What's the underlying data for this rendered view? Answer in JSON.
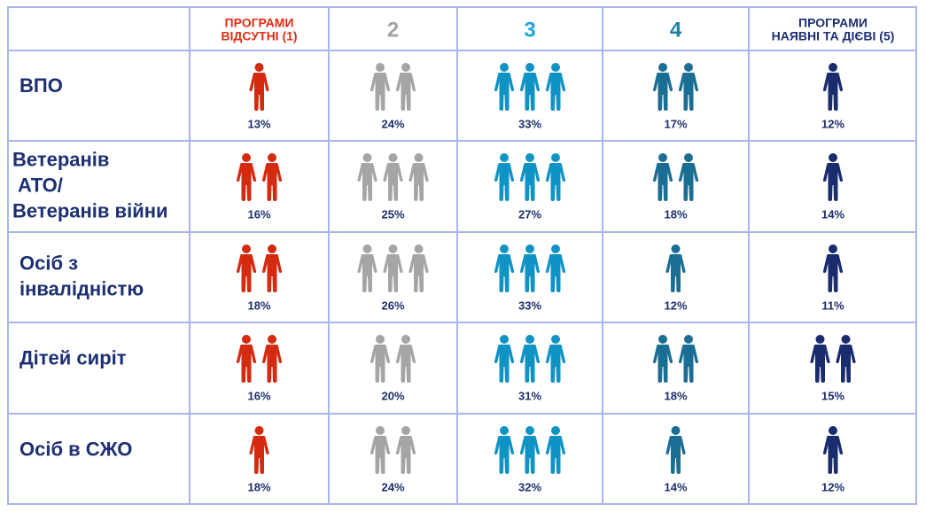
{
  "chart_data": {
    "type": "table",
    "columns": [
      {
        "label_lines": [
          "ПРОГРАМИ",
          "ВІДСУТНІ (1)"
        ],
        "color": "#e32b13"
      },
      {
        "label_lines": [
          "2"
        ],
        "color": "#a3a3a3"
      },
      {
        "label_lines": [
          "3"
        ],
        "color": "#1ea6d6"
      },
      {
        "label_lines": [
          "4"
        ],
        "color": "#1d7fa8"
      },
      {
        "label_lines": [
          "ПРОГРАМИ",
          "НАЯВНІ ТА ДІЄВІ (5)"
        ],
        "color": "#1c2f73"
      }
    ],
    "figure_colors": [
      "#d42a0f",
      "#a5a5a5",
      "#0f93c5",
      "#1a6d93",
      "#182c6e"
    ],
    "rows": [
      {
        "label_lines": [
          "ВПО"
        ],
        "values": [
          13,
          24,
          33,
          17,
          12
        ],
        "icons": [
          1,
          2,
          3,
          2,
          1
        ]
      },
      {
        "label_lines": [
          "Ветеранів",
          "АТО/",
          "Ветеранів війни"
        ],
        "values": [
          16,
          25,
          27,
          18,
          14
        ],
        "icons": [
          2,
          3,
          3,
          2,
          1
        ]
      },
      {
        "label_lines": [
          "Осіб з",
          "інвалідністю"
        ],
        "values": [
          18,
          26,
          33,
          12,
          11
        ],
        "icons": [
          2,
          3,
          3,
          1,
          1
        ]
      },
      {
        "label_lines": [
          "Дітей сиріт"
        ],
        "values": [
          16,
          20,
          31,
          18,
          15
        ],
        "icons": [
          2,
          2,
          3,
          2,
          2
        ]
      },
      {
        "label_lines": [
          "Осіб в СЖО"
        ],
        "values": [
          18,
          24,
          32,
          14,
          12
        ],
        "icons": [
          1,
          2,
          3,
          1,
          1
        ]
      }
    ],
    "value_suffix": "%",
    "value_color": "#1c2f6b",
    "row_label_color": "#1c2f73",
    "grid_color": "#a9b6ea"
  }
}
